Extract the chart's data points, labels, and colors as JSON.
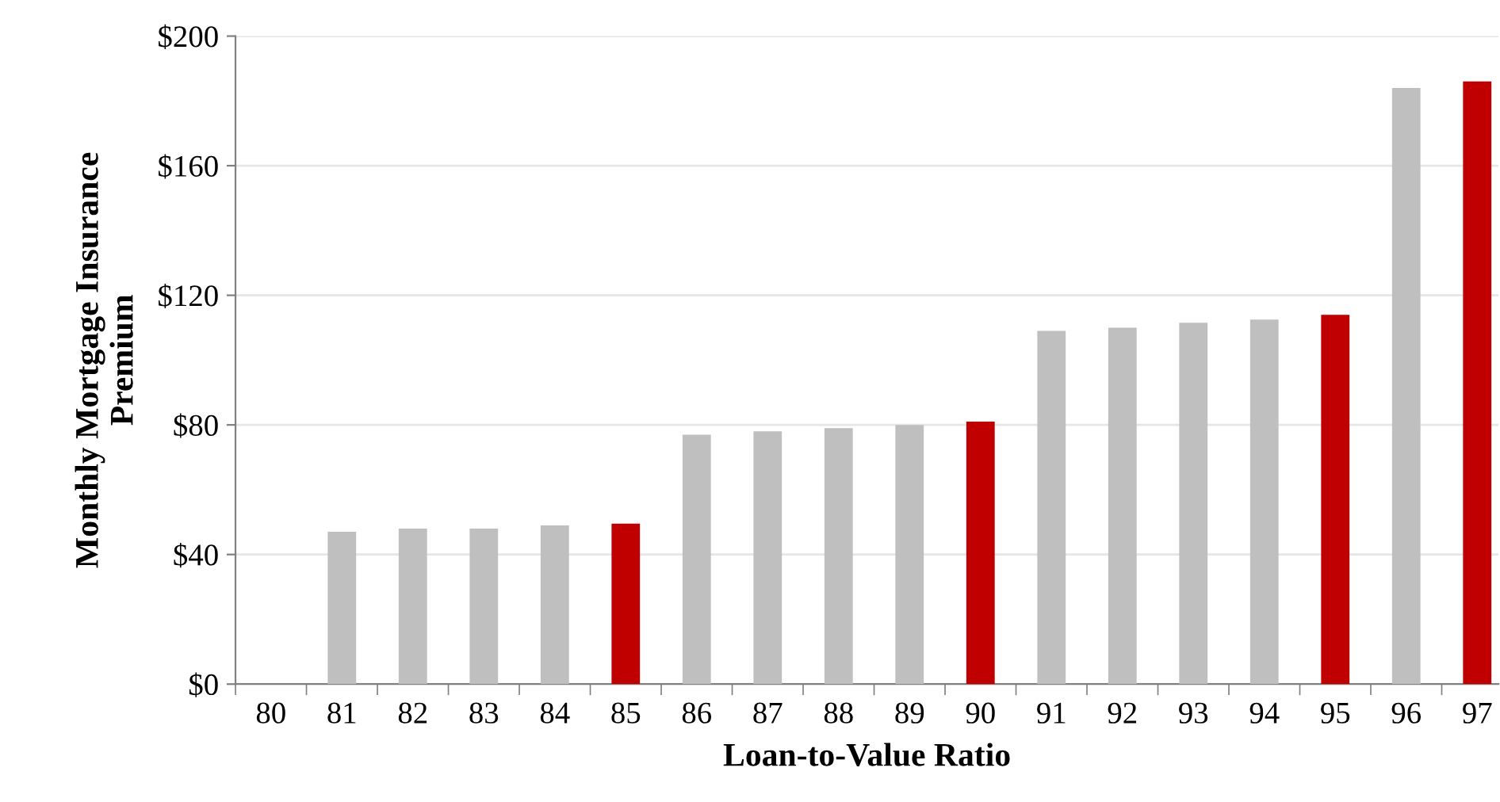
{
  "chart_data": {
    "type": "bar",
    "xlabel": "Loan-to-Value Ratio",
    "ylabel": "Monthly Mortgage Insurance\nPremium",
    "categories": [
      "80",
      "81",
      "82",
      "83",
      "84",
      "85",
      "86",
      "87",
      "88",
      "89",
      "90",
      "91",
      "92",
      "93",
      "94",
      "95",
      "96",
      "97"
    ],
    "values": [
      0,
      47,
      48,
      48,
      49,
      49.5,
      77,
      78,
      79,
      80,
      81,
      109,
      110,
      111.5,
      112.5,
      114,
      184,
      186
    ],
    "colors": [
      "#bfbfbf",
      "#bfbfbf",
      "#bfbfbf",
      "#bfbfbf",
      "#bfbfbf",
      "#c00000",
      "#bfbfbf",
      "#bfbfbf",
      "#bfbfbf",
      "#bfbfbf",
      "#c00000",
      "#bfbfbf",
      "#bfbfbf",
      "#bfbfbf",
      "#bfbfbf",
      "#c00000",
      "#bfbfbf",
      "#c00000"
    ],
    "ylim": [
      0,
      200
    ],
    "yticks": [
      {
        "value": 0,
        "label": "$0"
      },
      {
        "value": 40,
        "label": "$40"
      },
      {
        "value": 80,
        "label": "$80"
      },
      {
        "value": 120,
        "label": "$120"
      },
      {
        "value": 160,
        "label": "$160"
      },
      {
        "value": 200,
        "label": "$200"
      }
    ],
    "grid": "y"
  }
}
